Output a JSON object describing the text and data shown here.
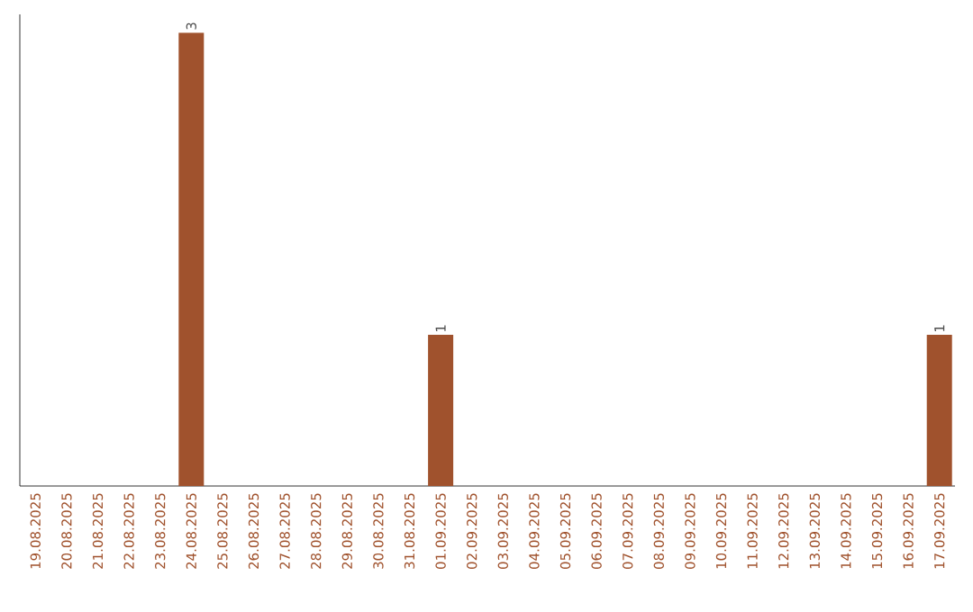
{
  "chart_data": {
    "type": "bar",
    "categories": [
      "19.08.2025",
      "20.08.2025",
      "21.08.2025",
      "22.08.2025",
      "23.08.2025",
      "24.08.2025",
      "25.08.2025",
      "26.08.2025",
      "27.08.2025",
      "28.08.2025",
      "29.08.2025",
      "30.08.2025",
      "31.08.2025",
      "01.09.2025",
      "02.09.2025",
      "03.09.2025",
      "04.09.2025",
      "05.09.2025",
      "06.09.2025",
      "07.09.2025",
      "08.09.2025",
      "09.09.2025",
      "10.09.2025",
      "11.09.2025",
      "12.09.2025",
      "13.09.2025",
      "14.09.2025",
      "15.09.2025",
      "16.09.2025",
      "17.09.2025"
    ],
    "values": [
      0,
      0,
      0,
      0,
      0,
      3,
      0,
      0,
      0,
      0,
      0,
      0,
      0,
      1,
      0,
      0,
      0,
      0,
      0,
      0,
      0,
      0,
      0,
      0,
      0,
      0,
      0,
      0,
      0,
      1
    ],
    "value_labels": [
      null,
      null,
      null,
      null,
      null,
      "3",
      null,
      null,
      null,
      null,
      null,
      null,
      null,
      "1",
      null,
      null,
      null,
      null,
      null,
      null,
      null,
      null,
      null,
      null,
      null,
      null,
      null,
      null,
      null,
      "1"
    ],
    "color": "#a0522d",
    "tick_labels": "x"
  }
}
